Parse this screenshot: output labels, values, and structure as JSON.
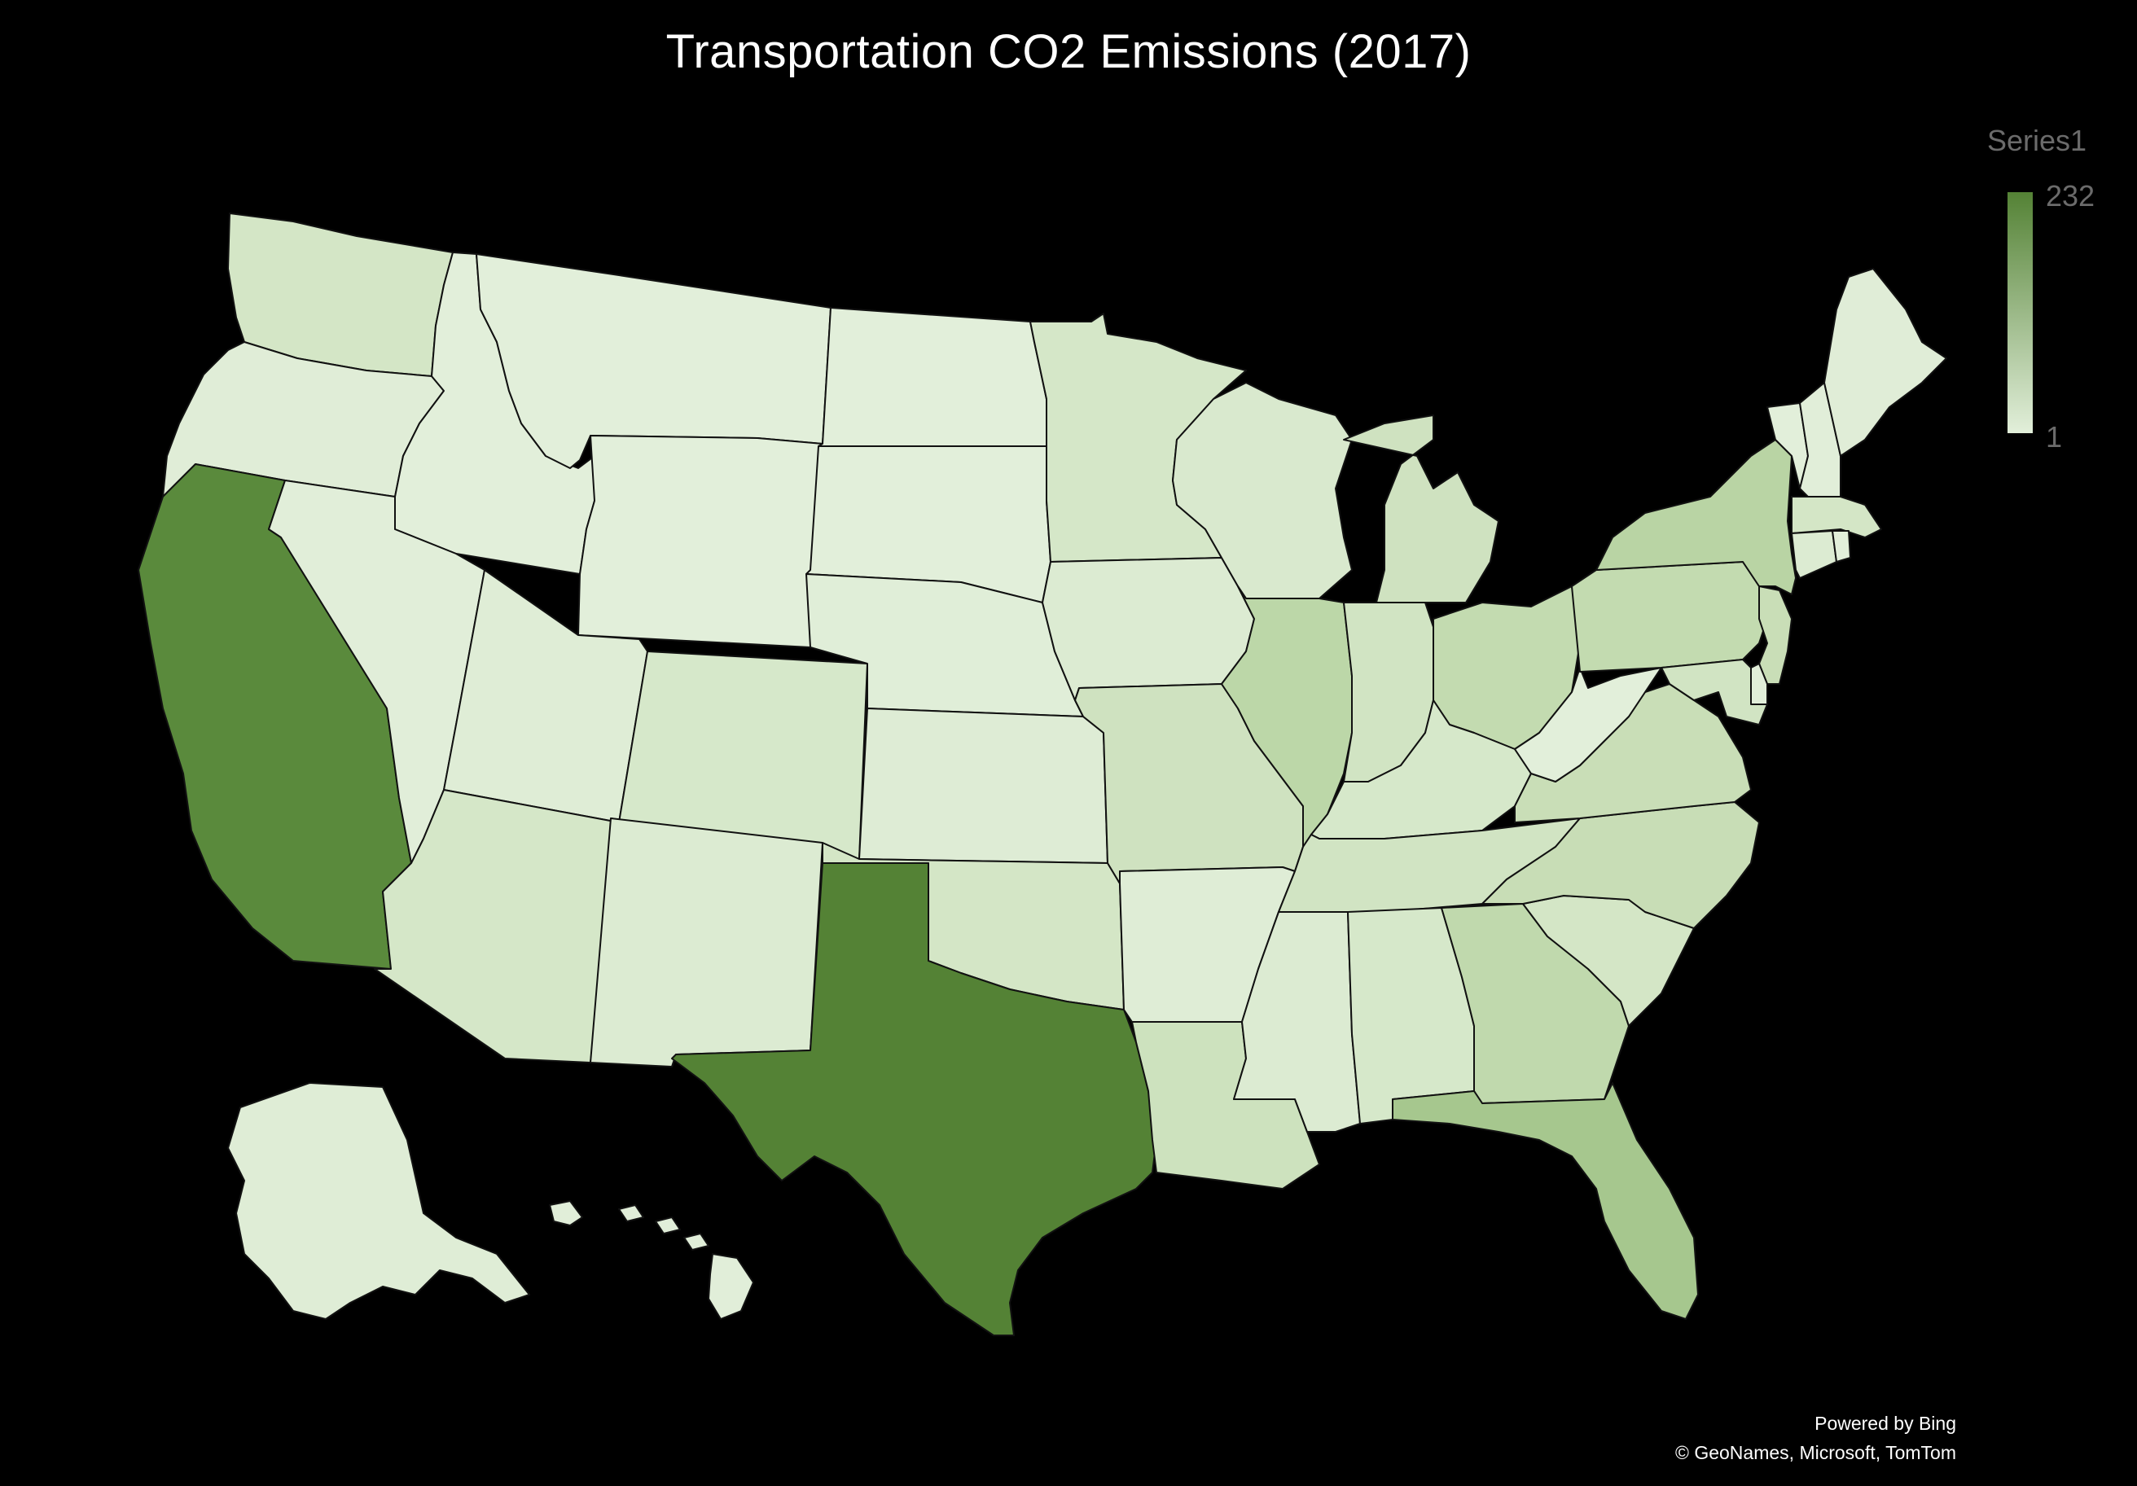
{
  "title": "Transportation CO2 Emissions (2017)",
  "legend": {
    "title": "Series1",
    "max_label": "232",
    "min_label": "1",
    "max_color": "#548235",
    "min_color": "#e2efda"
  },
  "credits": {
    "line1": "Powered by Bing",
    "line2": "© GeoNames, Microsoft, TomTom"
  },
  "map": {
    "type": "choropleth-us-states",
    "value_range": [
      1,
      232
    ],
    "states": [
      {
        "name": "WA",
        "fill": "#d4e6c6"
      },
      {
        "name": "OR",
        "fill": "#e0edd7"
      },
      {
        "name": "CA",
        "fill": "#5a8a3c"
      },
      {
        "name": "ID",
        "fill": "#e2efda"
      },
      {
        "name": "NV",
        "fill": "#e1eed9"
      },
      {
        "name": "MT",
        "fill": "#e2efda"
      },
      {
        "name": "WY",
        "fill": "#e2efda"
      },
      {
        "name": "UT",
        "fill": "#dfedd6"
      },
      {
        "name": "AZ",
        "fill": "#d5e7c8"
      },
      {
        "name": "CO",
        "fill": "#d6e8ca"
      },
      {
        "name": "NM",
        "fill": "#dcebd2"
      },
      {
        "name": "ND",
        "fill": "#e2efda"
      },
      {
        "name": "SD",
        "fill": "#e2efda"
      },
      {
        "name": "NE",
        "fill": "#e0eed8"
      },
      {
        "name": "KS",
        "fill": "#deecd5"
      },
      {
        "name": "OK",
        "fill": "#d4e6c6"
      },
      {
        "name": "TX",
        "fill": "#548235"
      },
      {
        "name": "MN",
        "fill": "#d5e7c8"
      },
      {
        "name": "IA",
        "fill": "#dcebd2"
      },
      {
        "name": "MO",
        "fill": "#cfe2c0"
      },
      {
        "name": "AR",
        "fill": "#dfedd6"
      },
      {
        "name": "LA",
        "fill": "#cde2be"
      },
      {
        "name": "WI",
        "fill": "#d9e9ce"
      },
      {
        "name": "IL",
        "fill": "#bcd7a8"
      },
      {
        "name": "MI",
        "fill": "#cfe2c0"
      },
      {
        "name": "IN",
        "fill": "#d1e4c3"
      },
      {
        "name": "OH",
        "fill": "#c3dbb0"
      },
      {
        "name": "KY",
        "fill": "#d6e8ca"
      },
      {
        "name": "TN",
        "fill": "#d1e4c3"
      },
      {
        "name": "MS",
        "fill": "#dcebd2"
      },
      {
        "name": "AL",
        "fill": "#d6e8ca"
      },
      {
        "name": "GA",
        "fill": "#c0d9ad"
      },
      {
        "name": "FL",
        "fill": "#a6c78e"
      },
      {
        "name": "SC",
        "fill": "#d4e6c6"
      },
      {
        "name": "NC",
        "fill": "#c8ddb6"
      },
      {
        "name": "VA",
        "fill": "#c9deb7"
      },
      {
        "name": "WV",
        "fill": "#e2efda"
      },
      {
        "name": "PA",
        "fill": "#c3dbb0"
      },
      {
        "name": "NY",
        "fill": "#b9d4a4"
      },
      {
        "name": "VT",
        "fill": "#e2efda"
      },
      {
        "name": "NH",
        "fill": "#e1eed9"
      },
      {
        "name": "ME",
        "fill": "#e0edd7"
      },
      {
        "name": "MA",
        "fill": "#d4e6c6"
      },
      {
        "name": "CT",
        "fill": "#dcebd2"
      },
      {
        "name": "RI",
        "fill": "#e2efda"
      },
      {
        "name": "NJ",
        "fill": "#c9deb7"
      },
      {
        "name": "DE",
        "fill": "#e1eed9"
      },
      {
        "name": "MD",
        "fill": "#d1e4c3"
      },
      {
        "name": "AK",
        "fill": "#dfedd6"
      },
      {
        "name": "HI",
        "fill": "#e1eed9"
      }
    ]
  }
}
